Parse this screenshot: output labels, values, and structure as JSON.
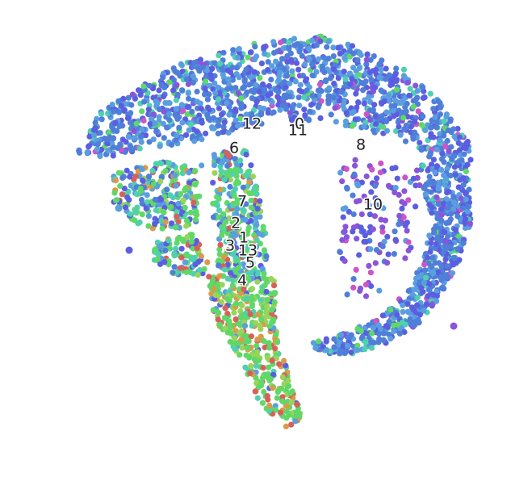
{
  "chart_data": {
    "type": "scatter",
    "title": "",
    "xlabel": "",
    "ylabel": "",
    "axes_visible": false,
    "grid": false,
    "legend": "none",
    "palette": {
      "blue": "#4f7fd8",
      "lightblue": "#5a9ee0",
      "indigo": "#5b5ee0",
      "purple": "#8a55d8",
      "teal": "#4fd0b0",
      "green": "#5fd868",
      "yellowgreen": "#9ad45a",
      "orange": "#d99a4a",
      "red": "#d8605a",
      "magenta": "#cc55c8"
    },
    "cluster_labels": [
      {
        "text": "12",
        "x": 312,
        "y": 154
      },
      {
        "text": "0",
        "x": 371,
        "y": 154
      },
      {
        "text": "11",
        "x": 369,
        "y": 162
      },
      {
        "text": "8",
        "x": 447,
        "y": 180
      },
      {
        "text": "6",
        "x": 290,
        "y": 184
      },
      {
        "text": "7",
        "x": 300,
        "y": 250
      },
      {
        "text": "10",
        "x": 462,
        "y": 254
      },
      {
        "text": "2",
        "x": 292,
        "y": 277
      },
      {
        "text": "1",
        "x": 302,
        "y": 295
      },
      {
        "text": "3",
        "x": 285,
        "y": 305
      },
      {
        "text": "13",
        "x": 307,
        "y": 311
      },
      {
        "text": "5",
        "x": 310,
        "y": 326
      },
      {
        "text": "4",
        "x": 300,
        "y": 348
      }
    ],
    "regions": [
      {
        "name": "arc-top",
        "mix": "blue",
        "path": [
          [
            95,
            190
          ],
          [
            120,
            140
          ],
          [
            170,
            110
          ],
          [
            220,
            80
          ],
          [
            280,
            62
          ],
          [
            340,
            48
          ],
          [
            400,
            45
          ],
          [
            450,
            60
          ],
          [
            500,
            85
          ],
          [
            540,
            120
          ],
          [
            580,
            175
          ],
          [
            590,
            205
          ],
          [
            575,
            215
          ],
          [
            540,
            200
          ],
          [
            500,
            175
          ],
          [
            450,
            160
          ],
          [
            400,
            150
          ],
          [
            340,
            150
          ],
          [
            290,
            165
          ],
          [
            240,
            175
          ],
          [
            180,
            185
          ],
          [
            130,
            195
          ]
        ],
        "n": 1300
      },
      {
        "name": "arc-right",
        "mix": "blue",
        "path": [
          [
            520,
            200
          ],
          [
            580,
            215
          ],
          [
            585,
            270
          ],
          [
            570,
            320
          ],
          [
            545,
            370
          ],
          [
            520,
            400
          ],
          [
            480,
            425
          ],
          [
            440,
            438
          ],
          [
            395,
            438
          ],
          [
            385,
            425
          ],
          [
            420,
            415
          ],
          [
            470,
            395
          ],
          [
            505,
            360
          ],
          [
            525,
            320
          ],
          [
            535,
            275
          ],
          [
            525,
            235
          ]
        ],
        "n": 600
      },
      {
        "name": "interior-scatter",
        "mix": "purple",
        "path": [
          [
            420,
            195
          ],
          [
            520,
            205
          ],
          [
            525,
            260
          ],
          [
            505,
            320
          ],
          [
            470,
            360
          ],
          [
            430,
            380
          ],
          [
            415,
            330
          ],
          [
            425,
            270
          ]
        ],
        "n": 140
      },
      {
        "name": "left-band",
        "mix": "mixed",
        "path": [
          [
            140,
            215
          ],
          [
            200,
            200
          ],
          [
            250,
            205
          ],
          [
            245,
            275
          ],
          [
            210,
            290
          ],
          [
            165,
            275
          ],
          [
            140,
            250
          ]
        ],
        "n": 260
      },
      {
        "name": "left-lobe",
        "mix": "mixed",
        "path": [
          [
            190,
            300
          ],
          [
            240,
            290
          ],
          [
            260,
            320
          ],
          [
            250,
            345
          ],
          [
            210,
            340
          ],
          [
            190,
            325
          ]
        ],
        "n": 110
      },
      {
        "name": "column-upper",
        "mix": "mixed",
        "path": [
          [
            265,
            190
          ],
          [
            305,
            185
          ],
          [
            320,
            235
          ],
          [
            330,
            290
          ],
          [
            330,
            345
          ],
          [
            300,
            350
          ],
          [
            270,
            330
          ],
          [
            262,
            260
          ]
        ],
        "n": 320
      },
      {
        "name": "column-lower",
        "mix": "green",
        "path": [
          [
            258,
            340
          ],
          [
            340,
            345
          ],
          [
            345,
            420
          ],
          [
            360,
            470
          ],
          [
            375,
            520
          ],
          [
            355,
            530
          ],
          [
            320,
            500
          ],
          [
            295,
            440
          ],
          [
            265,
            395
          ]
        ],
        "n": 420
      }
    ],
    "outliers": [
      {
        "x": 562,
        "y": 404,
        "color": "purple"
      },
      {
        "x": 160,
        "y": 310,
        "color": "indigo"
      },
      {
        "x": 147,
        "y": 258,
        "color": "lightblue"
      }
    ]
  }
}
